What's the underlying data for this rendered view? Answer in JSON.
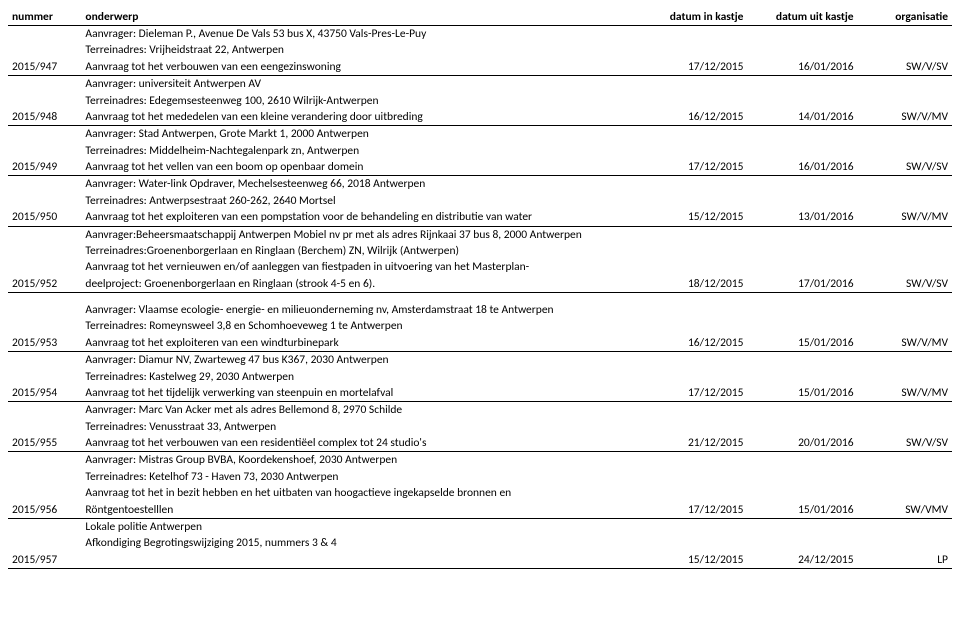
{
  "headers": {
    "nummer": "nummer",
    "onderwerp": "onderwerp",
    "datum_in": "datum in kastje",
    "datum_uit": "datum uit kastje",
    "organisatie": "organisatie"
  },
  "rows": [
    {
      "t": "detail",
      "c1": "",
      "c2": "Aanvrager: Dieleman P., Avenue De Vals 53 bus X, 43750 Vals-Pres-Le-Puy"
    },
    {
      "t": "detail",
      "c1": "",
      "c2": "Terreinadres: Vrijheidstraat 22, Antwerpen"
    },
    {
      "t": "summary",
      "c1": "2015/947",
      "c2": "Aanvraag tot het verbouwen van een eengezinswoning",
      "c3": "17/12/2015",
      "c4": "16/01/2016",
      "c5": "SW/V/SV"
    },
    {
      "t": "detail",
      "c1": "",
      "c2": "Aanvrager: universiteit Antwerpen AV"
    },
    {
      "t": "detail",
      "c1": "",
      "c2": "Terreinadres: Edegemsesteenweg 100, 2610 Wilrijk-Antwerpen"
    },
    {
      "t": "summary",
      "c1": "2015/948",
      "c2": "Aanvraag tot het mededelen van een kleine verandering door uitbreding",
      "c3": "16/12/2015",
      "c4": "14/01/2016",
      "c5": "SW/V/MV"
    },
    {
      "t": "detail",
      "c1": "",
      "c2": "Aanvrager: Stad Antwerpen, Grote Markt 1, 2000 Antwerpen"
    },
    {
      "t": "detail",
      "c1": "",
      "c2": "Terreinadres: Middelheim-Nachtegalenpark zn, Antwerpen"
    },
    {
      "t": "summary",
      "c1": "2015/949",
      "c2": "Aanvraag tot het vellen van een boom op openbaar domein",
      "c3": "17/12/2015",
      "c4": "16/01/2016",
      "c5": "SW/V/SV"
    },
    {
      "t": "detail",
      "c1": "",
      "c2": "Aanvrager: Water-link Opdraver, Mechelsesteenweg 66, 2018 Antwerpen"
    },
    {
      "t": "detail",
      "c1": "",
      "c2": "Terreinadres: Antwerpsestraat 260-262, 2640 Mortsel"
    },
    {
      "t": "summary",
      "c1": "2015/950",
      "c2": "Aanvraag tot het exploiteren van een pompstation voor de behandeling en distributie van water",
      "c3": "15/12/2015",
      "c4": "13/01/2016",
      "c5": "SW/V/MV"
    },
    {
      "t": "detail",
      "c1": "",
      "c2": "Aanvrager:Beheersmaatschappij Antwerpen Mobiel nv pr met als adres Rijnkaai 37 bus 8, 2000 Antwerpen"
    },
    {
      "t": "detail",
      "c1": "",
      "c2": "Terreinadres:Groenenborgerlaan en Ringlaan (Berchem) ZN, Wilrijk (Antwerpen)"
    },
    {
      "t": "detail",
      "c1": "",
      "c2": "Aanvraag tot het vernieuwen en/of aanleggen van fiestpaden in uitvoering van het Masterplan-"
    },
    {
      "t": "summary",
      "c1": "2015/952",
      "c2": "deelproject: Groenenborgerlaan en Ringlaan (strook 4-5 en 6).",
      "c3": "18/12/2015",
      "c4": "17/01/2016",
      "c5": "SW/V/SV"
    },
    {
      "t": "detail",
      "spacer": true,
      "c1": "",
      "c2": "Aanvrager: Vlaamse ecologie- energie- en milieuonderneming nv, Amsterdamstraat 18 te Antwerpen"
    },
    {
      "t": "detail",
      "c1": "",
      "c2": "Terreinadres: Romeynsweel 3,8 en Schomhoeveweg 1 te Antwerpen"
    },
    {
      "t": "summary",
      "c1": "2015/953",
      "c2": "Aanvraag tot het exploiteren van een windturbinepark",
      "c3": "16/12/2015",
      "c4": "15/01/2016",
      "c5": "SW/V/MV"
    },
    {
      "t": "detail",
      "c1": "",
      "c2": "Aanvrager: Diamur NV, Zwarteweg 47 bus K367, 2030 Antwerpen"
    },
    {
      "t": "detail",
      "c1": "",
      "c2": "Terreinadres: Kastelweg 29, 2030 Antwerpen"
    },
    {
      "t": "summary",
      "c1": "2015/954",
      "c2": "Aanvraag tot het tijdelijk verwerking van steenpuin en mortelafval",
      "c3": "17/12/2015",
      "c4": "15/01/2016",
      "c5": "SW/V/MV"
    },
    {
      "t": "detail",
      "c1": "",
      "c2": "Aanvrager: Marc Van Acker met als adres Bellemond 8, 2970 Schilde"
    },
    {
      "t": "detail",
      "c1": "",
      "c2": "Terreinadres: Venusstraat 33, Antwerpen"
    },
    {
      "t": "summary",
      "c1": "2015/955",
      "c2": "Aanvraag tot het verbouwen van een residentiëel complex tot 24 studio's",
      "c3": "21/12/2015",
      "c4": "20/01/2016",
      "c5": "SW/V/SV"
    },
    {
      "t": "detail",
      "c1": "",
      "c2": "Aanvrager: Mistras Group BVBA, Koordekenshoef, 2030 Antwerpen"
    },
    {
      "t": "detail",
      "c1": "",
      "c2": "Terreinadres: Ketelhof 73 - Haven 73, 2030 Antwerpen"
    },
    {
      "t": "detail",
      "c1": "",
      "c2": "Aanvraag tot het in bezit hebben en het uitbaten van  hoogactieve ingekapselde bronnen en"
    },
    {
      "t": "summary",
      "c1": "2015/956",
      "c2": "Röntgentoestelllen",
      "c3": "17/12/2015",
      "c4": "15/01/2016",
      "c5": "SW/VMV"
    },
    {
      "t": "detail",
      "c1": "",
      "c2": "Lokale politie Antwerpen"
    },
    {
      "t": "detail",
      "c1": "",
      "c2": "Afkondiging Begrotingswijziging 2015, nummers 3 & 4"
    },
    {
      "t": "summary",
      "c1": "2015/957",
      "c2": "",
      "c3": "15/12/2015",
      "c4": "24/12/2015",
      "c5": "LP"
    }
  ]
}
